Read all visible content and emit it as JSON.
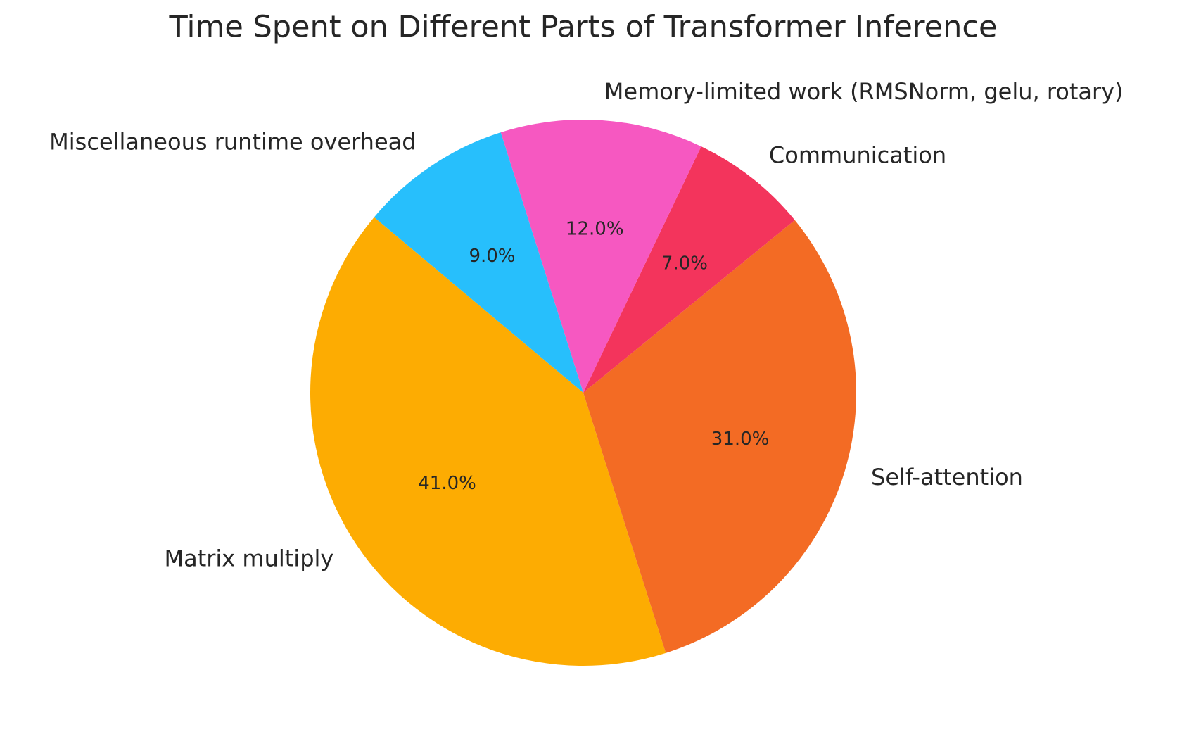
{
  "chart_data": {
    "type": "pie",
    "title": "Time Spent on Different Parts of Transformer Inference",
    "categories": [
      "Matrix multiply",
      "Self-attention",
      "Communication",
      "Memory-limited work (RMSNorm, gelu, rotary)",
      "Miscellaneous runtime overhead"
    ],
    "values": [
      41,
      31,
      7,
      12,
      9
    ],
    "value_labels": [
      "41.0%",
      "31.0%",
      "7.0%",
      "12.0%",
      "9.0%"
    ],
    "colors": [
      "#fdac02",
      "#f36b24",
      "#f3345c",
      "#f658c1",
      "#27bffc"
    ]
  }
}
